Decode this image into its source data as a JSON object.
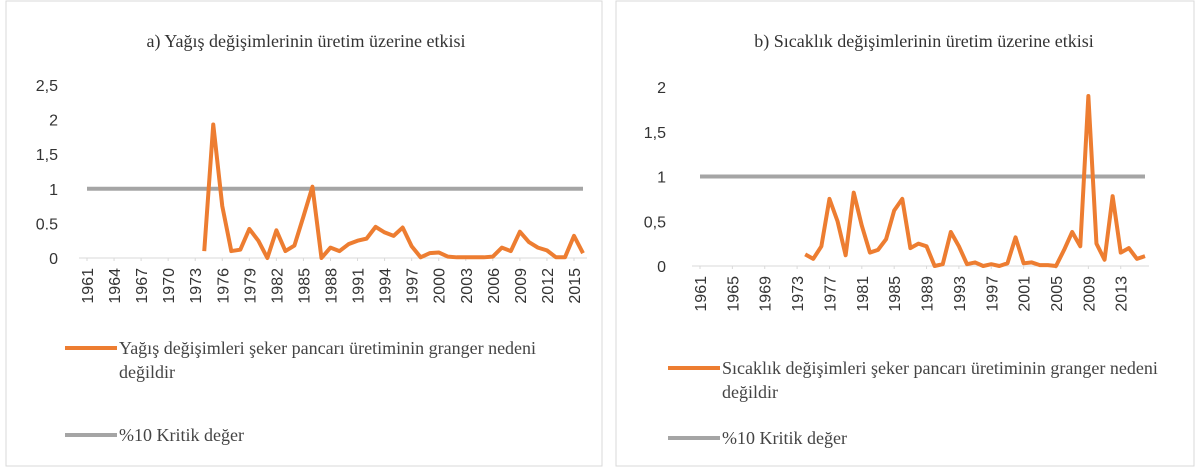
{
  "chart_data": [
    {
      "type": "line",
      "title": "a) Yağış değişimlerinin üretim üzerine etkisi",
      "x": [
        1961,
        1962,
        1963,
        1964,
        1965,
        1966,
        1967,
        1968,
        1969,
        1970,
        1971,
        1972,
        1973,
        1974,
        1975,
        1976,
        1977,
        1978,
        1979,
        1980,
        1981,
        1982,
        1983,
        1984,
        1985,
        1986,
        1987,
        1988,
        1989,
        1990,
        1991,
        1992,
        1993,
        1994,
        1995,
        1996,
        1997,
        1998,
        1999,
        2000,
        2001,
        2002,
        2003,
        2004,
        2005,
        2006,
        2007,
        2008,
        2009,
        2010,
        2011,
        2012,
        2013,
        2014,
        2015,
        2016
      ],
      "xlim": [
        1961,
        2016
      ],
      "xticks": [
        1961,
        1964,
        1967,
        1970,
        1973,
        1976,
        1979,
        1982,
        1985,
        1988,
        1991,
        1994,
        1997,
        2000,
        2003,
        2006,
        2009,
        2012,
        2015
      ],
      "ylim": [
        0,
        2.5
      ],
      "yticks": [
        0,
        0.5,
        1,
        {
          "value": 1.5,
          "label": "1,5"
        },
        2,
        {
          "value": 2.5,
          "label": "2,5"
        }
      ],
      "series": [
        {
          "name": "Yağış değişimleri şeker pancarı üretiminin granger nedeni değildir",
          "color": "#ed7d31",
          "values": [
            null,
            null,
            null,
            null,
            null,
            null,
            null,
            null,
            null,
            null,
            null,
            null,
            null,
            0.1,
            1.93,
            0.75,
            0.1,
            0.12,
            0.42,
            0.25,
            0.0,
            0.4,
            0.1,
            0.18,
            0.6,
            1.03,
            0.0,
            0.15,
            0.1,
            0.2,
            0.25,
            0.28,
            0.45,
            0.37,
            0.32,
            0.44,
            0.17,
            0.01,
            0.07,
            0.08,
            0.02,
            0.01,
            0.01,
            0.01,
            0.01,
            0.02,
            0.15,
            0.1,
            0.38,
            0.23,
            0.15,
            0.11,
            0.01,
            0.01,
            0.32,
            0.07
          ]
        },
        {
          "name": "%10 Kritik değer",
          "color": "#a5a5a5",
          "values": [
            1,
            1,
            1,
            1,
            1,
            1,
            1,
            1,
            1,
            1,
            1,
            1,
            1,
            1,
            1,
            1,
            1,
            1,
            1,
            1,
            1,
            1,
            1,
            1,
            1,
            1,
            1,
            1,
            1,
            1,
            1,
            1,
            1,
            1,
            1,
            1,
            1,
            1,
            1,
            1,
            1,
            1,
            1,
            1,
            1,
            1,
            1,
            1,
            1,
            1,
            1,
            1,
            1,
            1,
            1,
            1
          ]
        }
      ]
    },
    {
      "type": "line",
      "title": "b) Sıcaklık değişimlerinin üretim üzerine etkisi",
      "x": [
        1961,
        1962,
        1963,
        1964,
        1965,
        1966,
        1967,
        1968,
        1969,
        1970,
        1971,
        1972,
        1973,
        1974,
        1975,
        1976,
        1977,
        1978,
        1979,
        1980,
        1981,
        1982,
        1983,
        1984,
        1985,
        1986,
        1987,
        1988,
        1989,
        1990,
        1991,
        1992,
        1993,
        1994,
        1995,
        1996,
        1997,
        1998,
        1999,
        2000,
        2001,
        2002,
        2003,
        2004,
        2005,
        2006,
        2007,
        2008,
        2009,
        2010,
        2011,
        2012,
        2013,
        2014,
        2015,
        2016
      ],
      "xlim": [
        1961,
        2016
      ],
      "xticks": [
        1961,
        1965,
        1969,
        1973,
        1977,
        1981,
        1985,
        1989,
        1993,
        1997,
        2001,
        2005,
        2009,
        2013
      ],
      "ylim": [
        0,
        2
      ],
      "yticks": [
        0,
        {
          "value": 0.5,
          "label": "0,5"
        },
        1,
        {
          "value": 1.5,
          "label": "1,5"
        },
        2
      ],
      "series": [
        {
          "name": "Sıcaklık değişimleri şeker pancarı üretiminin granger nedeni değildir",
          "color": "#ed7d31",
          "values": [
            null,
            null,
            null,
            null,
            null,
            null,
            null,
            null,
            null,
            null,
            null,
            null,
            null,
            0.13,
            0.08,
            0.22,
            0.75,
            0.5,
            0.12,
            0.82,
            0.45,
            0.15,
            0.18,
            0.3,
            0.62,
            0.75,
            0.2,
            0.25,
            0.22,
            0.0,
            0.02,
            0.38,
            0.22,
            0.02,
            0.04,
            0.0,
            0.02,
            0.0,
            0.03,
            0.32,
            0.03,
            0.04,
            0.01,
            0.01,
            0.0,
            0.18,
            0.38,
            0.22,
            1.9,
            0.25,
            0.07,
            0.78,
            0.15,
            0.2,
            0.08,
            0.11
          ]
        },
        {
          "name": "%10 Kritik değer",
          "color": "#a5a5a5",
          "values": [
            1,
            1,
            1,
            1,
            1,
            1,
            1,
            1,
            1,
            1,
            1,
            1,
            1,
            1,
            1,
            1,
            1,
            1,
            1,
            1,
            1,
            1,
            1,
            1,
            1,
            1,
            1,
            1,
            1,
            1,
            1,
            1,
            1,
            1,
            1,
            1,
            1,
            1,
            1,
            1,
            1,
            1,
            1,
            1,
            1,
            1,
            1,
            1,
            1,
            1,
            1,
            1,
            1,
            1,
            1,
            1
          ]
        }
      ]
    }
  ]
}
